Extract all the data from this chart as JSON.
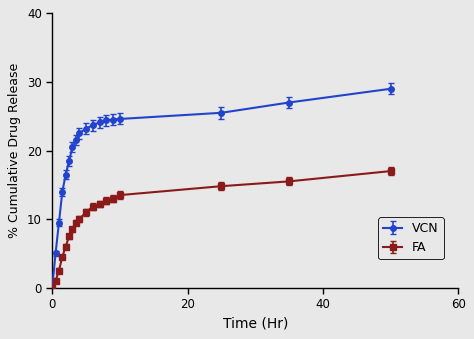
{
  "vcn_x": [
    0,
    0.5,
    1,
    1.5,
    2,
    2.5,
    3,
    3.5,
    4,
    5,
    6,
    7,
    8,
    9,
    10,
    25,
    35,
    50
  ],
  "vcn_y": [
    0,
    5.0,
    9.5,
    14.0,
    16.5,
    18.5,
    20.5,
    21.5,
    22.5,
    23.2,
    23.7,
    24.1,
    24.4,
    24.5,
    24.6,
    25.5,
    27.0,
    29.0
  ],
  "vcn_yerr": [
    0,
    0.4,
    0.5,
    0.6,
    0.7,
    0.7,
    0.7,
    0.7,
    0.8,
    0.8,
    0.8,
    0.8,
    0.8,
    0.8,
    0.8,
    0.9,
    0.8,
    0.8
  ],
  "fa_x": [
    0,
    0.5,
    1,
    1.5,
    2,
    2.5,
    3,
    3.5,
    4,
    5,
    6,
    7,
    8,
    9,
    10,
    25,
    35,
    50
  ],
  "fa_y": [
    0,
    1.0,
    2.5,
    4.5,
    6.0,
    7.5,
    8.5,
    9.5,
    10.0,
    11.0,
    11.8,
    12.2,
    12.7,
    13.0,
    13.5,
    14.8,
    15.5,
    17.0
  ],
  "fa_yerr": [
    0,
    0.3,
    0.3,
    0.3,
    0.4,
    0.4,
    0.4,
    0.4,
    0.4,
    0.5,
    0.5,
    0.5,
    0.5,
    0.5,
    0.6,
    0.6,
    0.6,
    0.6
  ],
  "vcn_color": "#2244cc",
  "fa_color": "#8b1a1a",
  "vcn_label": "VCN",
  "fa_label": "FA",
  "xlabel": "Time (Hr)",
  "ylabel": "% Cumulative Drug Release",
  "xlim": [
    0,
    60
  ],
  "ylim": [
    0,
    40
  ],
  "xticks": [
    0,
    20,
    40,
    60
  ],
  "yticks": [
    0,
    10,
    20,
    30,
    40
  ],
  "background_color": "#e8e8e8",
  "plot_bg_color": "#e8e8e8",
  "vcn_marker": "o",
  "fa_marker": "s",
  "markersize": 4,
  "linewidth": 1.5,
  "capsize": 2.5,
  "elinewidth": 1.2
}
